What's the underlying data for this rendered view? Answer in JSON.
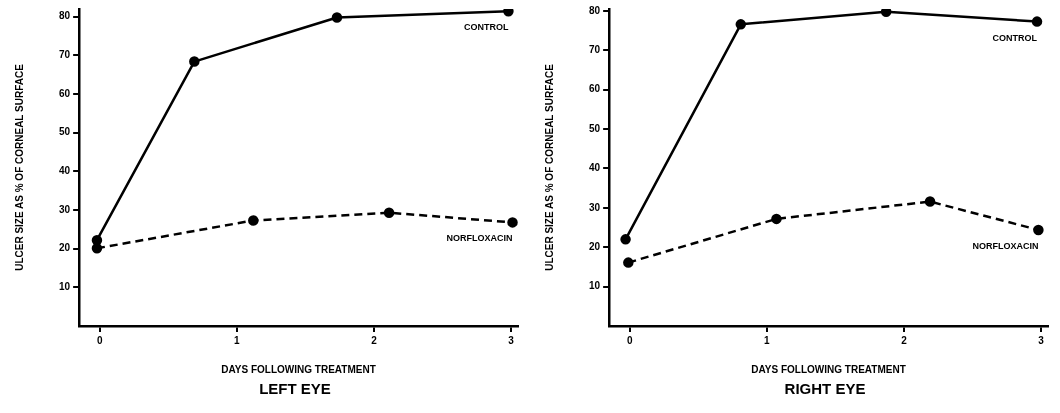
{
  "chart_data": [
    {
      "type": "line",
      "title": "LEFT EYE",
      "xlabel": "DAYS FOLLOWING TREATMENT",
      "ylabel": "ULCER SIZE AS % OF CORNEAL SURFACE",
      "xlim": [
        -0.15,
        3.05
      ],
      "ylim": [
        0,
        82
      ],
      "xticks": [
        0,
        1,
        2,
        3
      ],
      "yticks": [
        10,
        20,
        30,
        40,
        50,
        60,
        70,
        80
      ],
      "grid": false,
      "marker": "circle",
      "series": [
        {
          "name": "CONTROL",
          "color": "#000000",
          "line_style": "solid",
          "x": [
            -0.02,
            0.69,
            1.73,
            2.98
          ],
          "values": [
            22.2,
            68.4,
            79.8,
            81.4
          ]
        },
        {
          "name": "NORFLOXACIN",
          "color": "#000000",
          "line_style": "dashed",
          "x": [
            -0.02,
            1.12,
            2.11,
            3.01
          ],
          "values": [
            20.1,
            27.3,
            29.3,
            26.8
          ]
        }
      ]
    },
    {
      "type": "line",
      "title": "RIGHT EYE",
      "xlabel": "DAYS FOLLOWING TREATMENT",
      "ylabel": "ULCER SIZE AS % OF CORNEAL SURFACE",
      "xlim": [
        -0.15,
        3.05
      ],
      "ylim": [
        0,
        80.5
      ],
      "xticks": [
        0,
        1,
        2,
        3
      ],
      "yticks": [
        10,
        20,
        30,
        40,
        50,
        60,
        70,
        80
      ],
      "grid": false,
      "marker": "circle",
      "series": [
        {
          "name": "CONTROL",
          "color": "#000000",
          "line_style": "solid",
          "x": [
            -0.03,
            0.81,
            1.87,
            2.97
          ],
          "values": [
            22.0,
            76.6,
            79.8,
            77.3
          ]
        },
        {
          "name": "NORFLOXACIN",
          "color": "#000000",
          "line_style": "dashed",
          "x": [
            -0.01,
            1.07,
            2.19,
            2.98
          ],
          "values": [
            16.1,
            27.2,
            31.6,
            24.4
          ]
        }
      ]
    }
  ]
}
